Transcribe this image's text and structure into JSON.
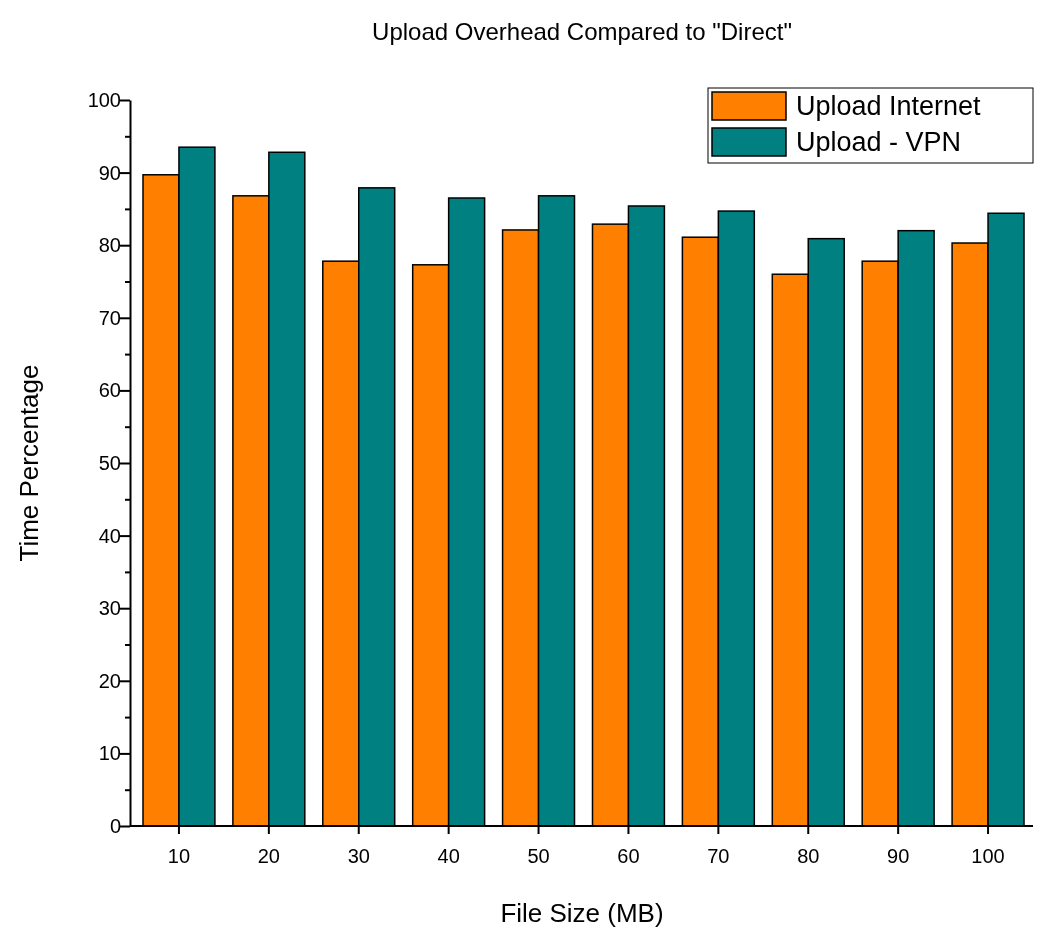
{
  "chart_data": {
    "type": "bar",
    "title": "Upload Overhead Compared to \"Direct\"",
    "xlabel": "File Size (MB)",
    "ylabel": "Time Percentage",
    "categories": [
      "10",
      "20",
      "30",
      "40",
      "50",
      "60",
      "70",
      "80",
      "90",
      "100"
    ],
    "series": [
      {
        "name": "Upload Internet",
        "color": "#ff8000",
        "values": [
          89.7,
          86.8,
          77.8,
          77.3,
          82.1,
          82.9,
          81.1,
          76.0,
          77.8,
          80.3
        ]
      },
      {
        "name": "Upload - VPN",
        "color": "#008080",
        "values": [
          93.5,
          92.8,
          87.9,
          86.5,
          86.8,
          85.4,
          84.7,
          80.9,
          82.0,
          84.4
        ]
      }
    ],
    "ylim": [
      0,
      100
    ],
    "yticks": [
      0,
      {
        "value": 5,
        "label": null
      },
      10,
      {
        "value": 15,
        "label": null
      },
      20,
      {
        "value": 25,
        "label": null
      },
      30,
      {
        "value": 35,
        "label": null
      },
      40,
      {
        "value": 45,
        "label": null
      },
      50,
      {
        "value": 55,
        "label": null
      },
      60,
      {
        "value": 65,
        "label": null
      },
      70,
      {
        "value": 75,
        "label": null
      },
      80,
      {
        "value": 85,
        "label": null
      },
      90,
      {
        "value": 95,
        "label": null
      },
      100
    ],
    "grid": false,
    "legend": "top right"
  }
}
